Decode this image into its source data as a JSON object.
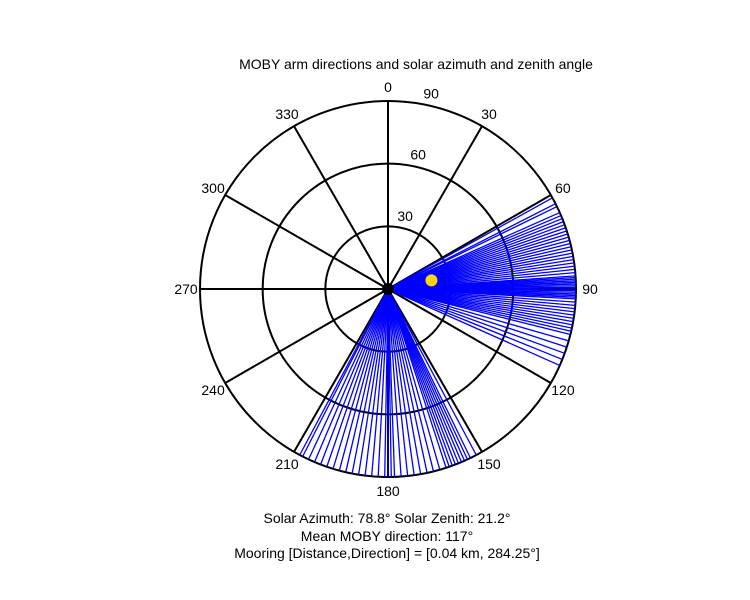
{
  "chart_data": {
    "type": "polar",
    "title": "MOBY arm directions and solar azimuth and zenith angle",
    "angle_ticks": [
      {
        "deg": 0,
        "label": "0"
      },
      {
        "deg": 30,
        "label": "30"
      },
      {
        "deg": 60,
        "label": "60"
      },
      {
        "deg": 90,
        "label": "90"
      },
      {
        "deg": 120,
        "label": "120"
      },
      {
        "deg": 150,
        "label": "150"
      },
      {
        "deg": 180,
        "label": "180"
      },
      {
        "deg": 210,
        "label": "210"
      },
      {
        "deg": 240,
        "label": "240"
      },
      {
        "deg": 270,
        "label": "270"
      },
      {
        "deg": 300,
        "label": "300"
      },
      {
        "deg": 330,
        "label": "330"
      }
    ],
    "radial_ticks": [
      {
        "value": 30,
        "label": "30"
      },
      {
        "value": 60,
        "label": "60"
      },
      {
        "value": 90,
        "label": "90"
      }
    ],
    "r_max": 90,
    "arm_color": "#0000ff",
    "arm_directions": [
      61,
      63,
      64,
      66,
      67,
      68,
      69,
      70,
      71,
      72,
      73,
      74,
      75,
      76,
      77,
      78,
      79,
      80,
      81,
      82,
      83,
      84,
      85,
      86,
      86.5,
      87,
      87.5,
      88,
      88.5,
      89,
      89.5,
      90,
      90.5,
      91,
      91.5,
      92,
      92.5,
      93,
      94,
      95,
      96,
      97,
      98,
      99,
      100,
      101,
      102,
      103,
      104,
      106,
      108,
      110,
      112,
      114,
      152,
      154,
      155,
      156,
      157,
      158,
      159,
      160,
      161,
      162,
      164,
      166,
      168,
      170,
      172,
      174,
      176,
      178,
      179,
      180,
      181,
      183,
      185,
      187,
      189,
      191,
      193,
      195,
      197,
      199,
      201,
      203,
      205,
      207,
      208
    ],
    "sun": {
      "azimuth": 78.8,
      "zenith": 21.2,
      "color": "#ffd700"
    },
    "caption": {
      "solar": "Solar Azimuth: 78.8°    Solar Zenith: 21.2°",
      "mean": "Mean MOBY direction: 117°",
      "mooring": "Mooring [Distance,Direction] = [0.04 km, 284.25°]"
    }
  }
}
